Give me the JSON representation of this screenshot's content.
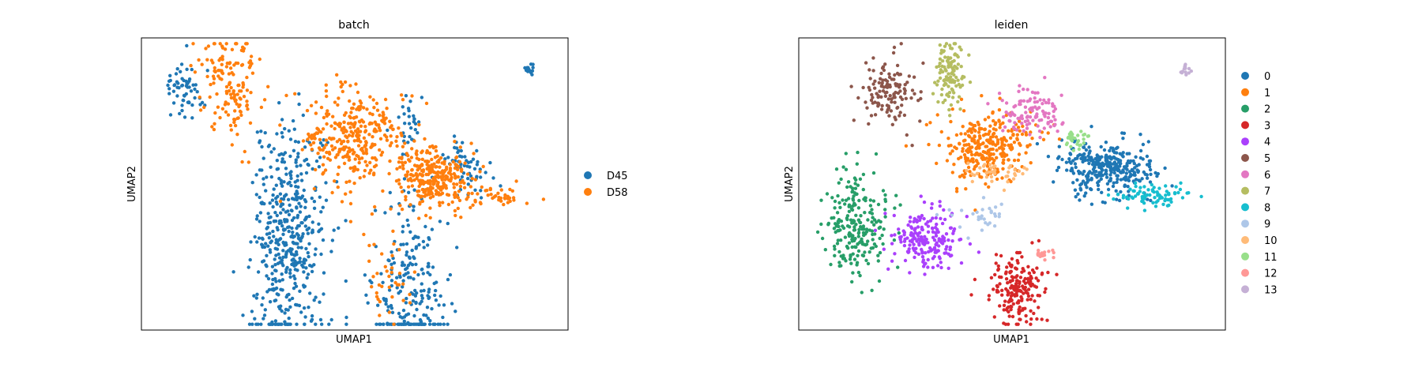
{
  "chart_data": [
    {
      "type": "scatter",
      "title": "batch",
      "xlabel": "UMAP1",
      "ylabel": "UMAP2",
      "grid": false,
      "ticks": "none",
      "legend_placement": "right",
      "series": [
        {
          "name": "D45",
          "color": "#1f77b4",
          "clusters": [
            {
              "cx": 0.09,
              "cy": 0.22,
              "sx": 0.07,
              "sy": 0.2,
              "n": 480
            },
            {
              "cx": 0.55,
              "cy": 0.03,
              "sx": 0.07,
              "sy": 0.17,
              "n": 230
            },
            {
              "cx": -0.3,
              "cy": 0.74,
              "sx": 0.04,
              "sy": 0.05,
              "n": 60
            },
            {
              "cx": 0.74,
              "cy": 0.5,
              "sx": 0.03,
              "sy": 0.03,
              "n": 25
            },
            {
              "cx": 0.55,
              "cy": 0.62,
              "sx": 0.03,
              "sy": 0.05,
              "n": 30
            },
            {
              "cx": 0.8,
              "cy": 0.43,
              "sx": 0.05,
              "sy": 0.04,
              "n": 30
            },
            {
              "cx": 1.0,
              "cy": 0.81,
              "sx": 0.01,
              "sy": 0.01,
              "n": 15
            }
          ]
        },
        {
          "name": "D58",
          "color": "#ff7f0e",
          "clusters": [
            {
              "cx": 0.34,
              "cy": 0.57,
              "sx": 0.1,
              "sy": 0.09,
              "n": 330
            },
            {
              "cx": 0.64,
              "cy": 0.43,
              "sx": 0.07,
              "sy": 0.05,
              "n": 280
            },
            {
              "cx": -0.14,
              "cy": 0.77,
              "sx": 0.06,
              "sy": 0.09,
              "n": 150
            },
            {
              "cx": 0.88,
              "cy": 0.37,
              "sx": 0.07,
              "sy": 0.02,
              "n": 40
            },
            {
              "cx": 0.46,
              "cy": 0.12,
              "sx": 0.05,
              "sy": 0.1,
              "n": 40
            }
          ]
        }
      ]
    },
    {
      "type": "scatter",
      "title": "leiden",
      "xlabel": "UMAP1",
      "ylabel": "UMAP2",
      "grid": false,
      "ticks": "none",
      "legend_placement": "right",
      "series": [
        {
          "name": "0",
          "color": "#1f77b4",
          "clusters": [
            {
              "cx": 0.69,
              "cy": 0.47,
              "sx": 0.09,
              "sy": 0.05,
              "n": 330
            }
          ]
        },
        {
          "name": "1",
          "color": "#ff7f0e",
          "clusters": [
            {
              "cx": 0.24,
              "cy": 0.54,
              "sx": 0.09,
              "sy": 0.06,
              "n": 300
            }
          ]
        },
        {
          "name": "2",
          "color": "#279e68",
          "clusters": [
            {
              "cx": -0.25,
              "cy": 0.27,
              "sx": 0.06,
              "sy": 0.09,
              "n": 230
            }
          ]
        },
        {
          "name": "3",
          "color": "#d62728",
          "clusters": [
            {
              "cx": 0.36,
              "cy": 0.04,
              "sx": 0.05,
              "sy": 0.06,
              "n": 190
            }
          ]
        },
        {
          "name": "4",
          "color": "#aa40fc",
          "clusters": [
            {
              "cx": 0.02,
              "cy": 0.22,
              "sx": 0.07,
              "sy": 0.05,
              "n": 190
            }
          ]
        },
        {
          "name": "5",
          "color": "#8c564b",
          "clusters": [
            {
              "cx": -0.12,
              "cy": 0.74,
              "sx": 0.05,
              "sy": 0.06,
              "n": 130
            }
          ]
        },
        {
          "name": "6",
          "color": "#e377c2",
          "clusters": [
            {
              "cx": 0.41,
              "cy": 0.66,
              "sx": 0.06,
              "sy": 0.04,
              "n": 110
            }
          ]
        },
        {
          "name": "7",
          "color": "#b5bd61",
          "clusters": [
            {
              "cx": 0.1,
              "cy": 0.8,
              "sx": 0.03,
              "sy": 0.06,
              "n": 110
            }
          ]
        },
        {
          "name": "8",
          "color": "#17becf",
          "clusters": [
            {
              "cx": 0.88,
              "cy": 0.37,
              "sx": 0.07,
              "sy": 0.02,
              "n": 80
            }
          ]
        },
        {
          "name": "9",
          "color": "#aec7e8",
          "clusters": [
            {
              "cx": 0.23,
              "cy": 0.3,
              "sx": 0.06,
              "sy": 0.03,
              "n": 30
            }
          ]
        },
        {
          "name": "10",
          "color": "#ffbb78",
          "clusters": [
            {
              "cx": 0.28,
              "cy": 0.45,
              "sx": 0.06,
              "sy": 0.02,
              "n": 40
            }
          ]
        },
        {
          "name": "11",
          "color": "#98df8a",
          "clusters": [
            {
              "cx": 0.58,
              "cy": 0.57,
              "sx": 0.03,
              "sy": 0.015,
              "n": 30
            }
          ]
        },
        {
          "name": "12",
          "color": "#ff9896",
          "clusters": [
            {
              "cx": 0.46,
              "cy": 0.16,
              "sx": 0.02,
              "sy": 0.01,
              "n": 20
            }
          ]
        },
        {
          "name": "13",
          "color": "#c5b0d5",
          "clusters": [
            {
              "cx": 1.0,
              "cy": 0.81,
              "sx": 0.01,
              "sy": 0.01,
              "n": 15
            }
          ]
        }
      ]
    }
  ]
}
